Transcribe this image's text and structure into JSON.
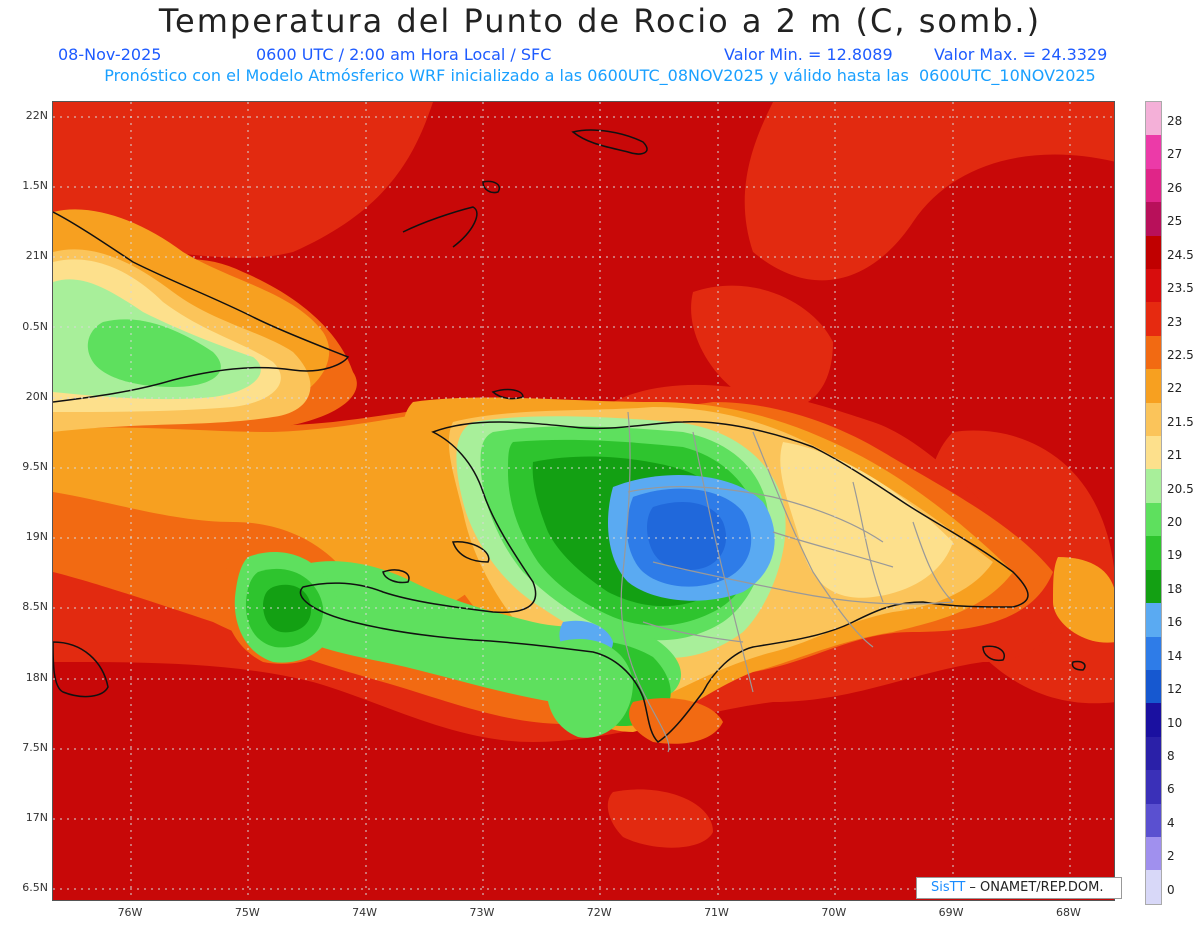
{
  "title": "Temperatura del Punto de Rocio a 2 m (C, somb.)",
  "date": "08-Nov-2025",
  "time": "0600 UTC / 2:00 am Hora Local / SFC",
  "vmin": "Valor Min. = 12.8089",
  "vmax": "Valor Max. = 24.3329",
  "model_line": "Pronóstico con el Modelo Atmósferico WRF inicializado a las 0600UTC_08NOV2025 y válido hasta las  0600UTC_10NOV2025",
  "lat_ticks": [
    "22N",
    "1.5N",
    "21N",
    "0.5N",
    "20N",
    "9.5N",
    "19N",
    "8.5N",
    "18N",
    "7.5N",
    "17N",
    "6.5N"
  ],
  "lon_ticks": [
    "76W",
    "75W",
    "74W",
    "73W",
    "72W",
    "71W",
    "70W",
    "69W",
    "68W"
  ],
  "legend": {
    "labels": [
      "28",
      "27",
      "26",
      "25",
      "24.5",
      "23.5",
      "23",
      "22.5",
      "22",
      "21.5",
      "21",
      "20.5",
      "20",
      "19",
      "18",
      "16",
      "14",
      "12",
      "10",
      "8",
      "6",
      "4",
      "2",
      "0"
    ],
    "colors": [
      "#f4b0d8",
      "#ec3aa8",
      "#e02588",
      "#b8105a",
      "#c00000",
      "#d80d0d",
      "#e62a10",
      "#f26a12",
      "#f7a020",
      "#fbc45a",
      "#fde08c",
      "#a8ef9a",
      "#5ee05e",
      "#2ec42e",
      "#13a013",
      "#5aaaf2",
      "#2e7ce8",
      "#1658d0",
      "#1a10a0",
      "#2a20a8",
      "#3a30b8",
      "#5a50d0",
      "#a090ee",
      "#d8d8f8"
    ]
  },
  "credit_brand": "SisTT",
  "credit_text": " – ONAMET/REP.DOM."
}
